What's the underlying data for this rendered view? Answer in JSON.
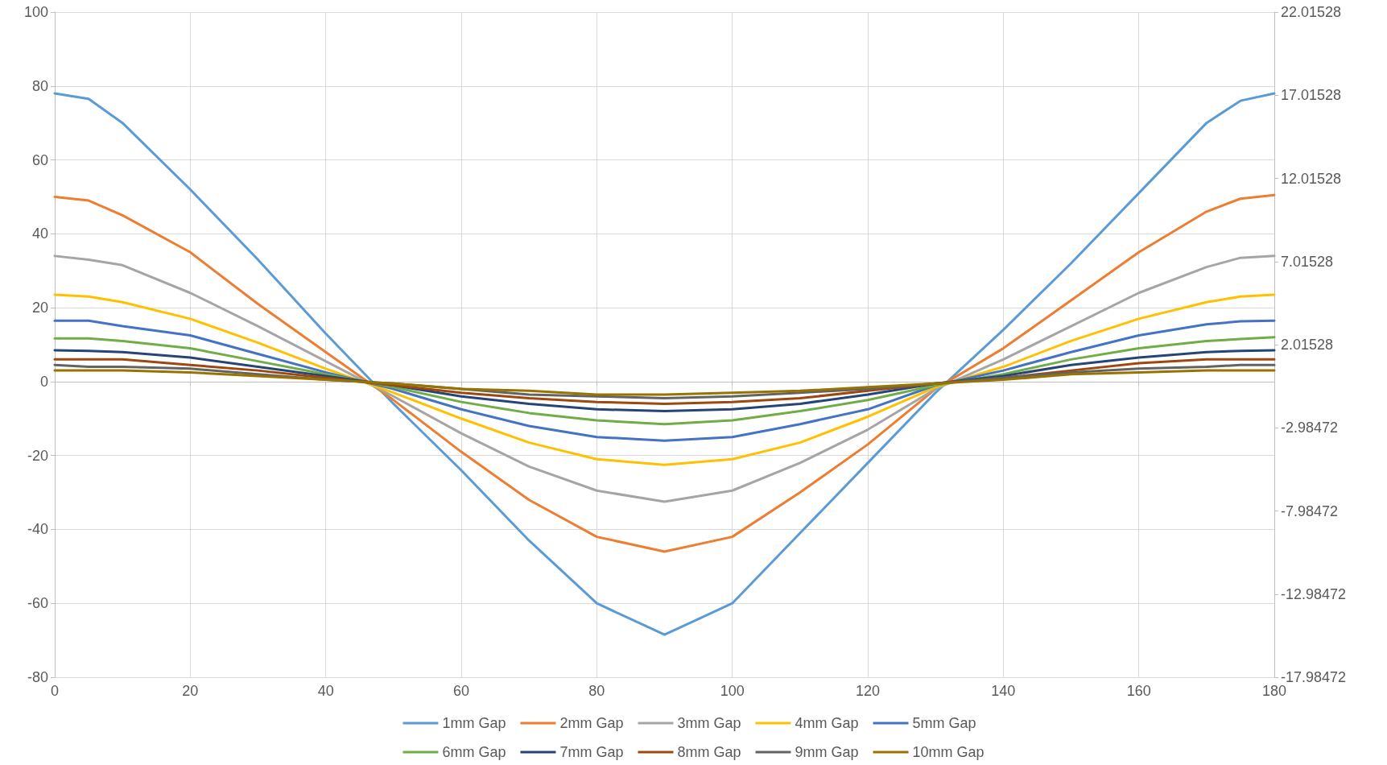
{
  "chart_data": {
    "type": "line",
    "x": [
      0,
      5,
      10,
      20,
      30,
      40,
      50,
      60,
      70,
      80,
      90,
      100,
      110,
      120,
      130,
      140,
      150,
      160,
      170,
      175,
      180
    ],
    "series": [
      {
        "name": "1mm Gap",
        "color": "#5b9bd5",
        "values": [
          78,
          76.5,
          70,
          52,
          33,
          13,
          -6,
          -24,
          -43,
          -60,
          -68.5,
          -60,
          -41,
          -22,
          -3,
          14,
          32,
          51,
          70,
          76,
          78
        ]
      },
      {
        "name": "2mm Gap",
        "color": "#ed7d31",
        "values": [
          50,
          49,
          45,
          35,
          21,
          8,
          -5,
          -19,
          -32,
          -42,
          -46,
          -42,
          -30,
          -17,
          -2,
          9,
          22,
          35,
          46,
          49.5,
          50.5
        ]
      },
      {
        "name": "3mm Gap",
        "color": "#a5a5a5",
        "values": [
          34,
          33,
          31.5,
          24,
          15,
          5.5,
          -4,
          -14,
          -23,
          -29.5,
          -32.5,
          -29.5,
          -22,
          -13,
          -2,
          6,
          15,
          24,
          31,
          33.5,
          34
        ]
      },
      {
        "name": "4mm Gap",
        "color": "#ffc000",
        "values": [
          23.5,
          23,
          21.5,
          17,
          10.5,
          3.5,
          -3,
          -10,
          -16.5,
          -21,
          -22.5,
          -21,
          -16.5,
          -9.5,
          -1.5,
          4,
          11,
          17,
          21.5,
          23,
          23.5
        ]
      },
      {
        "name": "5mm Gap",
        "color": "#4472c4",
        "values": [
          16.5,
          16.5,
          15,
          12.5,
          7.5,
          2.5,
          -2,
          -7.5,
          -12,
          -15,
          -16,
          -15,
          -11.5,
          -7.5,
          -1,
          3,
          8,
          12.5,
          15.5,
          16.3,
          16.5
        ]
      },
      {
        "name": "6mm Gap",
        "color": "#70ad47",
        "values": [
          11.7,
          11.7,
          11,
          9,
          5.5,
          2,
          -1.5,
          -5.5,
          -8.5,
          -10.5,
          -11.5,
          -10.5,
          -8,
          -5,
          -1,
          2,
          6,
          9,
          11,
          11.5,
          12
        ]
      },
      {
        "name": "7mm Gap",
        "color": "#264478",
        "values": [
          8.5,
          8.3,
          8,
          6.5,
          4,
          1.5,
          -1,
          -4,
          -6,
          -7.5,
          -8,
          -7.5,
          -6,
          -3.5,
          -0.5,
          1.5,
          4.5,
          6.5,
          8,
          8.3,
          8.5
        ]
      },
      {
        "name": "8mm Gap",
        "color": "#9e480e",
        "values": [
          6,
          6,
          6,
          4.5,
          3,
          1,
          -1,
          -3,
          -4.5,
          -5.5,
          -6,
          -5.5,
          -4.5,
          -2.5,
          -0.5,
          1,
          3,
          5,
          6,
          6,
          6
        ]
      },
      {
        "name": "9mm Gap",
        "color": "#636363",
        "values": [
          4.5,
          4,
          4,
          3.5,
          2,
          0.5,
          -0.5,
          -2,
          -3.5,
          -4,
          -4.5,
          -4,
          -3,
          -2,
          -0.5,
          1,
          2.5,
          3.5,
          4,
          4.5,
          4.5
        ]
      },
      {
        "name": "10mm Gap",
        "color": "#997300",
        "values": [
          3,
          3,
          3,
          2.5,
          1.5,
          0.5,
          -0.5,
          -2,
          -2.5,
          -3.5,
          -3.5,
          -3,
          -2.5,
          -1.5,
          -0.5,
          0.5,
          2,
          2.5,
          3,
          3,
          3
        ]
      }
    ],
    "xlim": [
      0,
      180
    ],
    "xticks": [
      0,
      20,
      40,
      60,
      80,
      100,
      120,
      140,
      160,
      180
    ],
    "ylim": [
      -80,
      100
    ],
    "yticks": [
      -80,
      -60,
      -40,
      -20,
      0,
      20,
      40,
      60,
      80,
      100
    ],
    "y2lim": [
      -17.98472,
      22.01528
    ],
    "y2ticks": [
      -17.98472,
      -12.98472,
      -7.98472,
      -2.98472,
      2.01528,
      7.01528,
      12.01528,
      17.01528,
      22.01528
    ],
    "grid": true,
    "legend": "bottom",
    "line_style": "solid"
  }
}
